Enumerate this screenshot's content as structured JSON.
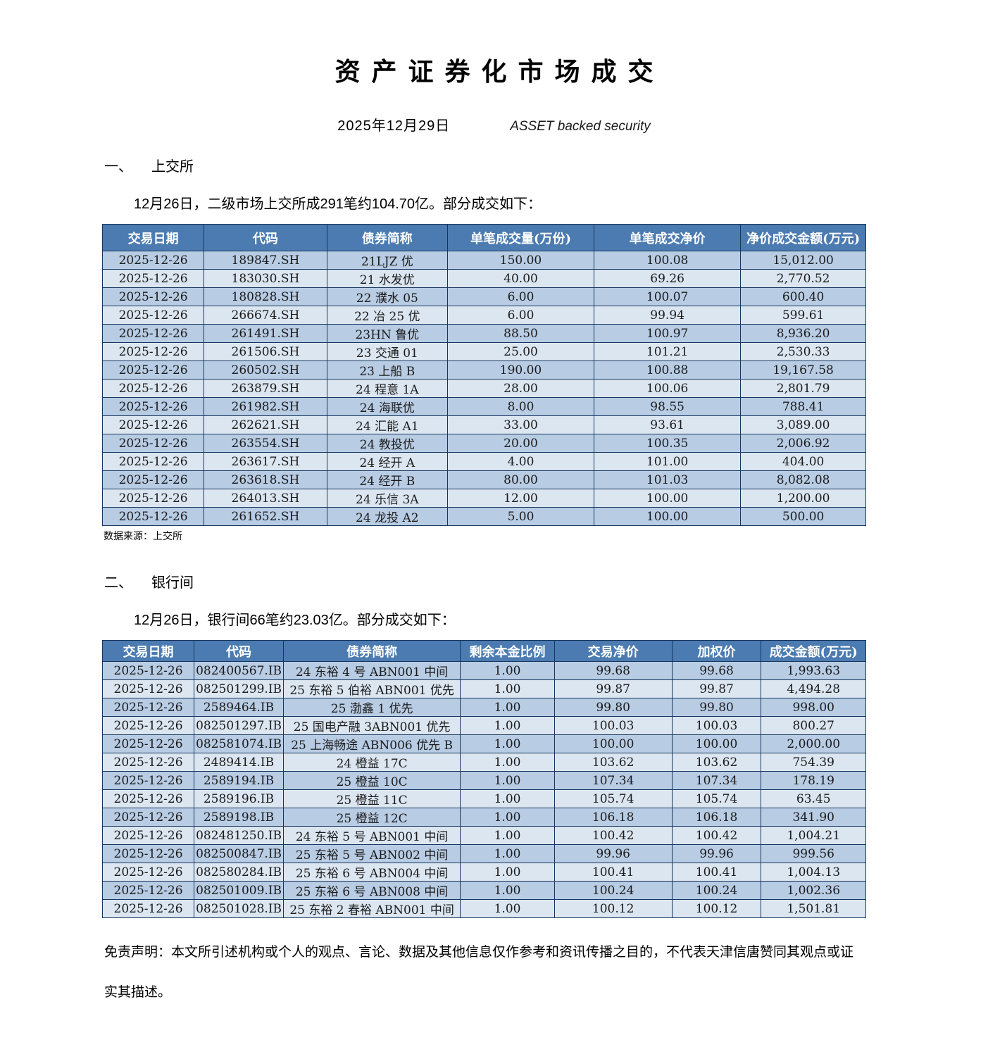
{
  "title": "资产证券化市场成交",
  "subtitle": {
    "date": "2025年12月29日",
    "tagline": "ASSET backed security"
  },
  "sections": [
    {
      "number": "一、",
      "heading": "上交所",
      "intro": "12月26日，二级市场上交所成291笔约104.70亿。部分成交如下：",
      "source": "数据来源：上交所",
      "table": {
        "headers": [
          "交易日期",
          "代码",
          "债券简称",
          "单笔成交量(万份)",
          "单笔成交净价",
          "净价成交金额(万元)"
        ],
        "rows": [
          [
            "2025-12-26",
            "189847.SH",
            "21LJZ 优",
            "150.00",
            "100.08",
            "15,012.00"
          ],
          [
            "2025-12-26",
            "183030.SH",
            "21 水发优",
            "40.00",
            "69.26",
            "2,770.52"
          ],
          [
            "2025-12-26",
            "180828.SH",
            "22 濮水 05",
            "6.00",
            "100.07",
            "600.40"
          ],
          [
            "2025-12-26",
            "266674.SH",
            "22 冶 25 优",
            "6.00",
            "99.94",
            "599.61"
          ],
          [
            "2025-12-26",
            "261491.SH",
            "23HN 鲁优",
            "88.50",
            "100.97",
            "8,936.20"
          ],
          [
            "2025-12-26",
            "261506.SH",
            "23 交通 01",
            "25.00",
            "101.21",
            "2,530.33"
          ],
          [
            "2025-12-26",
            "260502.SH",
            "23 上船 B",
            "190.00",
            "100.88",
            "19,167.58"
          ],
          [
            "2025-12-26",
            "263879.SH",
            "24 程意 1A",
            "28.00",
            "100.06",
            "2,801.79"
          ],
          [
            "2025-12-26",
            "261982.SH",
            "24 海联优",
            "8.00",
            "98.55",
            "788.41"
          ],
          [
            "2025-12-26",
            "262621.SH",
            "24 汇能 A1",
            "33.00",
            "93.61",
            "3,089.00"
          ],
          [
            "2025-12-26",
            "263554.SH",
            "24 教投优",
            "20.00",
            "100.35",
            "2,006.92"
          ],
          [
            "2025-12-26",
            "263617.SH",
            "24 经开 A",
            "4.00",
            "101.00",
            "404.00"
          ],
          [
            "2025-12-26",
            "263618.SH",
            "24 经开 B",
            "80.00",
            "101.03",
            "8,082.08"
          ],
          [
            "2025-12-26",
            "264013.SH",
            "24 乐信 3A",
            "12.00",
            "100.00",
            "1,200.00"
          ],
          [
            "2025-12-26",
            "261652.SH",
            "24 龙投 A2",
            "5.00",
            "100.00",
            "500.00"
          ]
        ]
      }
    },
    {
      "number": "二、",
      "heading": "银行间",
      "intro": "12月26日，银行间66笔约23.03亿。部分成交如下：",
      "table": {
        "headers": [
          "交易日期",
          "代码",
          "债券简称",
          "剩余本金比例",
          "交易净价",
          "加权价",
          "成交金额(万元)"
        ],
        "rows": [
          [
            "2025-12-26",
            "082400567.IB",
            "24 东裕 4 号 ABN001 中间",
            "1.00",
            "99.68",
            "99.68",
            "1,993.63"
          ],
          [
            "2025-12-26",
            "082501299.IB",
            "25 东裕 5 伯裕 ABN001 优先",
            "1.00",
            "99.87",
            "99.87",
            "4,494.28"
          ],
          [
            "2025-12-26",
            "2589464.IB",
            "25 渤鑫 1 优先",
            "1.00",
            "99.80",
            "99.80",
            "998.00"
          ],
          [
            "2025-12-26",
            "082501297.IB",
            "25 国电产融 3ABN001 优先",
            "1.00",
            "100.03",
            "100.03",
            "800.27"
          ],
          [
            "2025-12-26",
            "082581074.IB",
            "25 上海畅途 ABN006 优先 B",
            "1.00",
            "100.00",
            "100.00",
            "2,000.00"
          ],
          [
            "2025-12-26",
            "2489414.IB",
            "24 橙益 17C",
            "1.00",
            "103.62",
            "103.62",
            "754.39"
          ],
          [
            "2025-12-26",
            "2589194.IB",
            "25 橙益 10C",
            "1.00",
            "107.34",
            "107.34",
            "178.19"
          ],
          [
            "2025-12-26",
            "2589196.IB",
            "25 橙益 11C",
            "1.00",
            "105.74",
            "105.74",
            "63.45"
          ],
          [
            "2025-12-26",
            "2589198.IB",
            "25 橙益 12C",
            "1.00",
            "106.18",
            "106.18",
            "341.90"
          ],
          [
            "2025-12-26",
            "082481250.IB",
            "24 东裕 5 号 ABN001 中间",
            "1.00",
            "100.42",
            "100.42",
            "1,004.21"
          ],
          [
            "2025-12-26",
            "082500847.IB",
            "25 东裕 5 号 ABN002 中间",
            "1.00",
            "99.96",
            "99.96",
            "999.56"
          ],
          [
            "2025-12-26",
            "082580284.IB",
            "25 东裕 6 号 ABN004 中间",
            "1.00",
            "100.41",
            "100.41",
            "1,004.13"
          ],
          [
            "2025-12-26",
            "082501009.IB",
            "25 东裕 6 号 ABN008 中间",
            "1.00",
            "100.24",
            "100.24",
            "1,002.36"
          ],
          [
            "2025-12-26",
            "082501028.IB",
            "25 东裕 2 春裕 ABN001 中间",
            "1.00",
            "100.12",
            "100.12",
            "1,501.81"
          ]
        ]
      }
    }
  ],
  "disclaimer": "免责声明：本文所引述机构或个人的观点、言论、数据及其他信息仅作参考和资讯传播之目的，不代表天津信唐赞同其观点或证实其描述。",
  "colors": {
    "header_bg": "#4b7bb1",
    "row_odd": "#b8cce4",
    "row_even": "#dce6f1",
    "border": "#17365d"
  }
}
